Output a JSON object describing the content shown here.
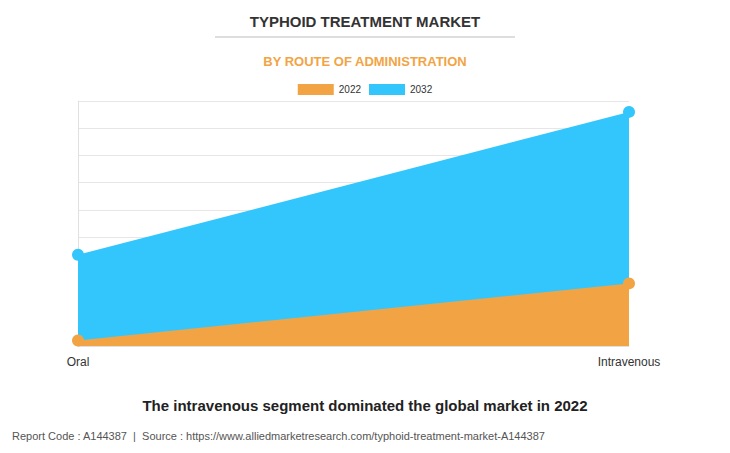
{
  "chart_data": {
    "type": "area",
    "title": "TYPHOID TREATMENT MARKET",
    "subtitle": "BY ROUTE OF ADMINISTRATION",
    "annotations": [
      "The intravenous segment dominated the global market in 2022",
      "Report Code : A144387  |  Source : https://www.alliedmarketresearch.com/typhoid-treatment-market-A144387"
    ],
    "categories": [
      "Oral",
      "Intravenous"
    ],
    "series": [
      {
        "name": "2022",
        "color": "#f2a444",
        "values": [
          0.2,
          2.3
        ]
      },
      {
        "name": "2032",
        "color": "#33c6fd",
        "values": [
          3.35,
          8.6
        ]
      }
    ],
    "ylim": [
      0,
      9
    ],
    "yticks": [
      0,
      1,
      2,
      3,
      4,
      5,
      6,
      7,
      8,
      9
    ],
    "grid": true,
    "legend": "top",
    "tick_labels": "x",
    "marker": "circle"
  }
}
